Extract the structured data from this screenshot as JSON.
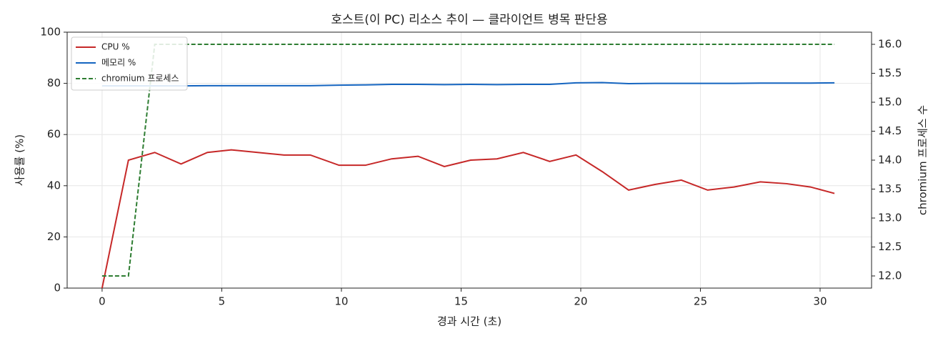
{
  "chart_data": {
    "type": "line",
    "title": "호스트(이 PC) 리소스 추이 — 클라이언트 병목 판단용",
    "x_label": "경과 시간 (초)",
    "y_label": "사용률 (%)",
    "y2_label": "chromium 프로세스 수",
    "x": [
      0,
      1.1,
      2.2,
      3.3,
      4.4,
      5.4,
      6.5,
      7.6,
      8.7,
      9.9,
      11.0,
      12.1,
      13.2,
      14.3,
      15.4,
      16.5,
      17.6,
      18.7,
      19.8,
      20.9,
      22.0,
      23.1,
      24.2,
      25.3,
      26.4,
      27.5,
      28.6,
      29.6,
      30.6
    ],
    "series": [
      {
        "name": "CPU %",
        "color": "#c62828",
        "dash": false,
        "values": [
          0,
          50,
          53,
          48.5,
          53,
          54,
          53,
          52,
          52,
          48,
          48,
          50.5,
          51.5,
          47.5,
          50,
          50.5,
          53,
          49.5,
          52,
          45.5,
          38.3,
          40.5,
          42.2,
          38.3,
          39.5,
          41.5,
          40.8,
          39.5,
          37
        ]
      },
      {
        "name": "메모리 %",
        "color": "#1565c0",
        "dash": false,
        "values": [
          79,
          79,
          79,
          79,
          79.1,
          79.1,
          79.1,
          79.1,
          79.1,
          79.3,
          79.4,
          79.6,
          79.6,
          79.5,
          79.6,
          79.5,
          79.6,
          79.6,
          80.2,
          80.3,
          79.9,
          80,
          80,
          80,
          80,
          80.1,
          80.1,
          80.1,
          80.2
        ]
      },
      {
        "name": "chromium 프로세스",
        "color": "#2e7d32",
        "dash": true,
        "axis": "y2",
        "values": [
          12,
          12,
          16,
          16,
          16,
          16,
          16,
          16,
          16,
          16,
          16,
          16,
          16,
          16,
          16,
          16,
          16,
          16,
          16,
          16,
          16,
          16,
          16,
          16,
          16,
          16,
          16,
          16,
          16
        ]
      }
    ],
    "xlim": [
      -1.46,
      32.15
    ],
    "xticks": [
      0,
      5,
      10,
      15,
      20,
      25,
      30
    ],
    "ylim": [
      0,
      100
    ],
    "yticks": [
      0,
      20,
      40,
      60,
      80,
      100
    ],
    "y2lim": [
      11.79,
      16.21
    ],
    "y2ticks": [
      {
        "value": 12,
        "label": "12.0"
      },
      {
        "value": 12.5,
        "label": "12.5"
      },
      {
        "value": 13,
        "label": "13.0"
      },
      {
        "value": 13.5,
        "label": "13.5"
      },
      {
        "value": 14,
        "label": "14.0"
      },
      {
        "value": 14.5,
        "label": "14.5"
      },
      {
        "value": 15,
        "label": "15.0"
      },
      {
        "value": 15.5,
        "label": "15.5"
      },
      {
        "value": 16,
        "label": "16.0"
      }
    ],
    "grid": true,
    "legend": "upper-left"
  }
}
